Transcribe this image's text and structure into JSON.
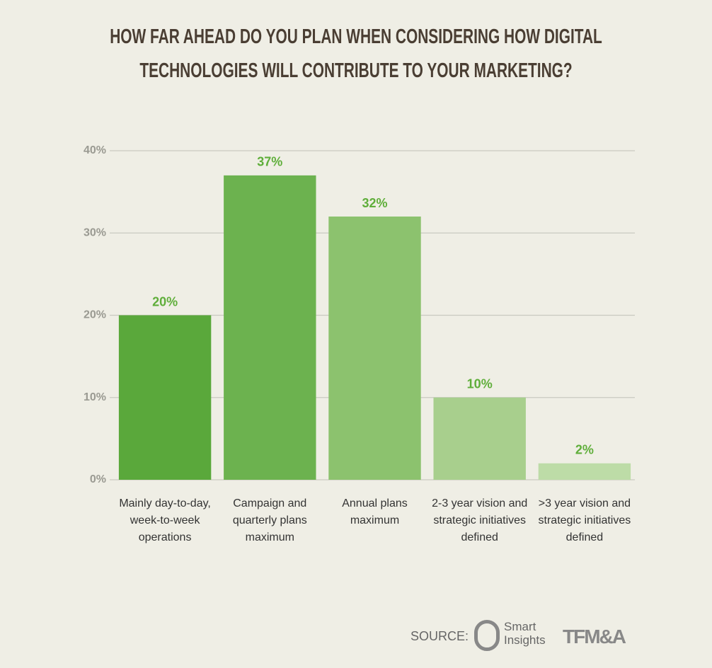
{
  "chart_data": {
    "type": "bar",
    "title": "HOW FAR AHEAD DO YOU PLAN WHEN CONSIDERING HOW DIGITAL TECHNOLOGIES WILL CONTRIBUTE TO YOUR MARKETING?",
    "categories": [
      "Mainly day-to-day, week-to-week operations",
      "Campaign and quarterly plans maximum",
      "Annual plans maximum",
      "2-3 year vision and strategic initiatives defined",
      ">3 year vision and strategic initiatives defined"
    ],
    "values": [
      20,
      37,
      32,
      10,
      2
    ],
    "value_labels": [
      "20%",
      "37%",
      "32%",
      "10%",
      "2%"
    ],
    "colors": [
      "#5aa83b",
      "#6cb24f",
      "#8cc26e",
      "#a8cf8d",
      "#bddca7"
    ],
    "ylim": [
      0,
      40
    ],
    "yticks": [
      {
        "value": 0,
        "label": "0%"
      },
      {
        "value": 10,
        "label": "10%"
      },
      {
        "value": 20,
        "label": "20%"
      },
      {
        "value": 30,
        "label": "30%"
      },
      {
        "value": 40,
        "label": "40%"
      }
    ],
    "grid": true,
    "source_label": "SOURCE:",
    "source_logos": [
      "Smart Insights",
      "TFM&A"
    ]
  }
}
